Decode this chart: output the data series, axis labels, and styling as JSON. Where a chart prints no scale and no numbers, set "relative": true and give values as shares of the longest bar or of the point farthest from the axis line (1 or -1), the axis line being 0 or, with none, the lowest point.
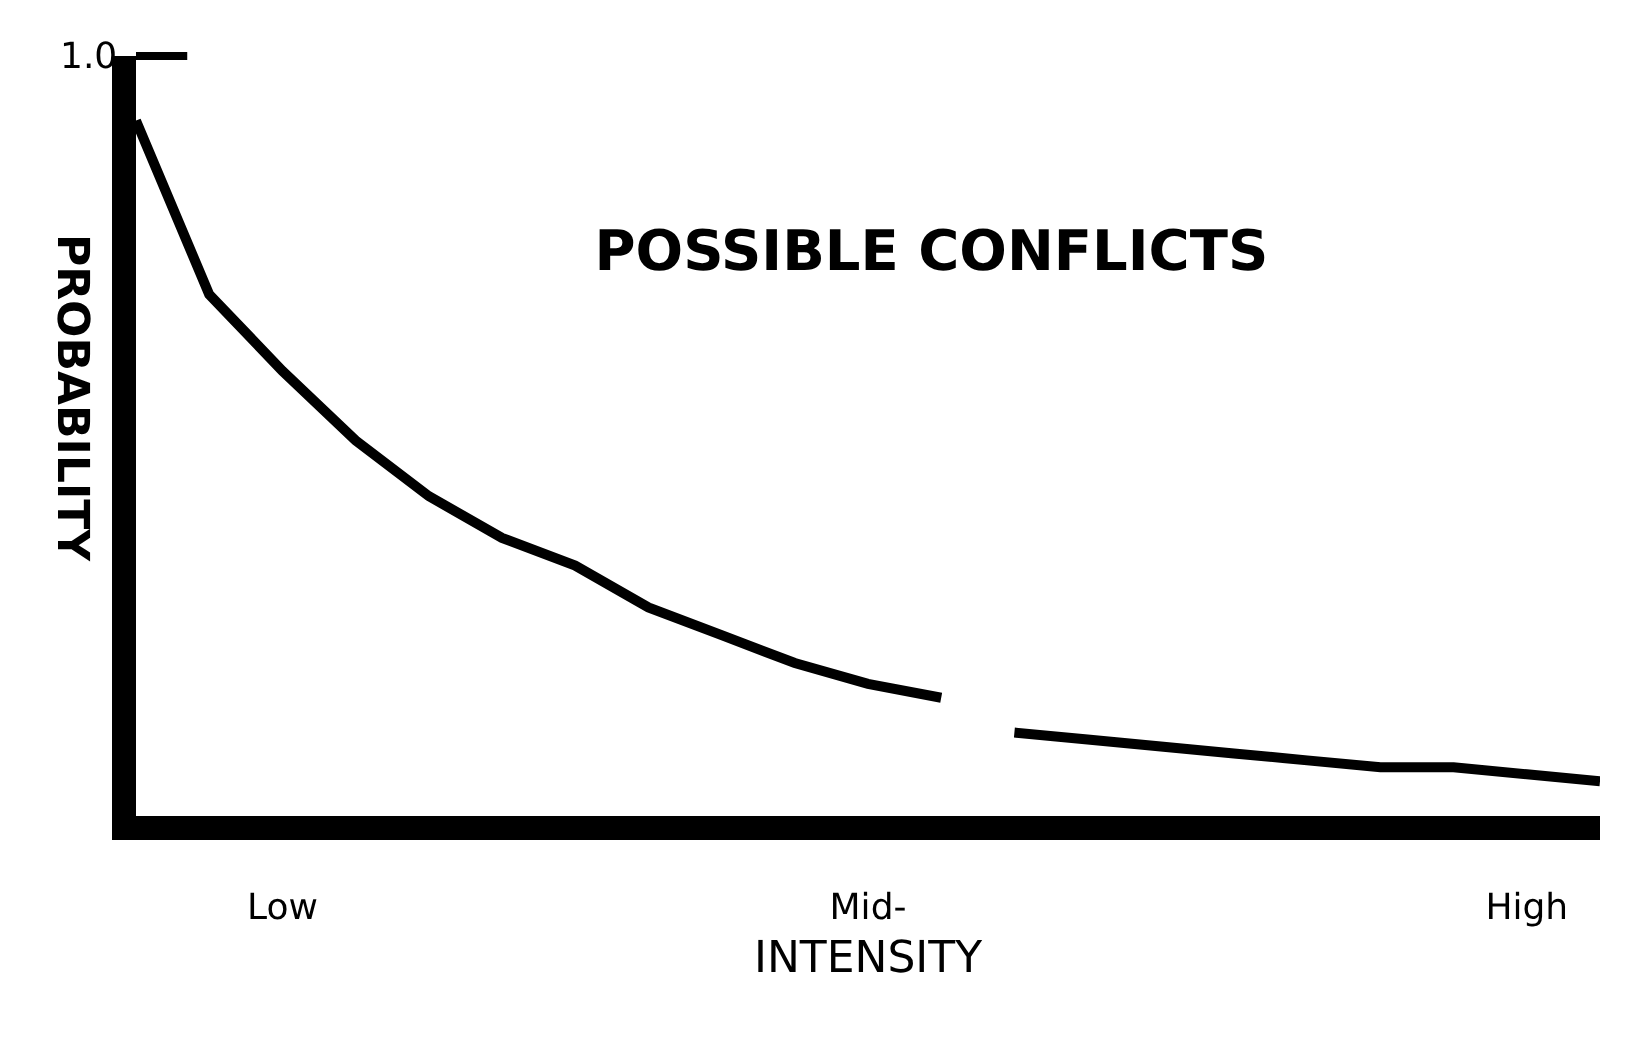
{
  "chart_data": {
    "type": "line",
    "title": "POSSIBLE CONFLICTS",
    "xlabel": "INTENSITY",
    "ylabel": "PROBABILITY",
    "annotations": [
      "1.0"
    ],
    "categories": [
      null,
      null,
      "Low",
      null,
      null,
      null,
      null,
      null,
      null,
      null,
      "Mid-",
      null,
      null,
      null,
      null,
      null,
      null,
      null,
      null,
      "High",
      null
    ],
    "relative": true,
    "tick_labels": "x",
    "series": [
      {
        "color": "#000000",
        "values": [
          1.0,
          0.75,
          0.64,
          0.54,
          0.46,
          0.4,
          0.36,
          0.3,
          0.26,
          0.22,
          0.19,
          0.17,
          null,
          null,
          null,
          null,
          null,
          null,
          null,
          null,
          null
        ]
      },
      {
        "color": "#000000",
        "values": [
          null,
          null,
          null,
          null,
          null,
          null,
          null,
          null,
          null,
          null,
          null,
          null,
          0.12,
          0.11,
          0.1,
          0.09,
          0.08,
          0.07,
          0.07,
          0.06,
          0.05
        ]
      }
    ],
    "marker": "none",
    "line_style": "solid"
  }
}
